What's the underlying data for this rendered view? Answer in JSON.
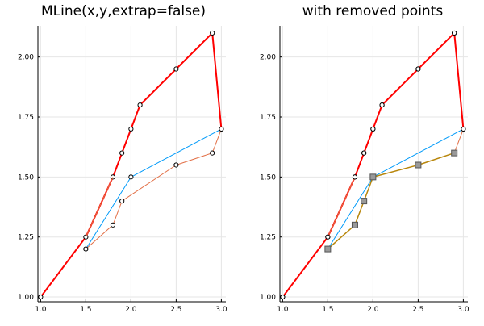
{
  "chart_data": [
    {
      "type": "line",
      "title": "MLine(x,y,extrap=false)",
      "xlabel": "",
      "ylabel": "",
      "xlim": [
        0.97,
        3.05
      ],
      "ylim": [
        0.98,
        2.13
      ],
      "xticks": [
        1.0,
        1.5,
        2.0,
        2.5,
        3.0
      ],
      "xtick_labels": [
        "1.0",
        "1.5",
        "2.0",
        "2.5",
        "3.0"
      ],
      "yticks": [
        1.0,
        1.25,
        1.5,
        1.75,
        2.0
      ],
      "ytick_labels": [
        "1.00",
        "1.25",
        "1.50",
        "1.75",
        "2.00"
      ],
      "grid": true,
      "legend": "none",
      "series": [
        {
          "color": "#ff0000",
          "line_width": 2,
          "markers": true,
          "x": [
            1.0,
            1.5,
            1.8,
            1.9,
            2.0,
            2.1,
            2.5,
            2.9,
            3.0
          ],
          "y": [
            1.0,
            1.25,
            1.5,
            1.6,
            1.7,
            1.8,
            1.95,
            2.1,
            1.7
          ]
        },
        {
          "color": "#009af9",
          "line_width": 1,
          "markers": false,
          "x": [
            1.5,
            2.0,
            3.0
          ],
          "y": [
            1.2,
            1.5,
            1.7
          ]
        },
        {
          "color": "#e26f46",
          "line_width": 1,
          "markers": true,
          "x": [
            1.5,
            1.8,
            1.9,
            2.5,
            2.9,
            3.0
          ],
          "y": [
            1.2,
            1.3,
            1.4,
            1.55,
            1.6,
            1.7
          ]
        },
        {
          "color": "#e26f46",
          "line_width": 1,
          "markers": false,
          "x": [
            1.5,
            1.8
          ],
          "y": [
            1.25,
            1.5
          ]
        },
        {
          "color": "#009af9",
          "line_width": 1,
          "markers": true,
          "x": [
            2.0
          ],
          "y": [
            1.5
          ]
        }
      ]
    },
    {
      "type": "line",
      "title": "with removed points",
      "xlabel": "",
      "ylabel": "",
      "xlim": [
        0.97,
        3.05
      ],
      "ylim": [
        0.98,
        2.13
      ],
      "xticks": [
        1.0,
        1.5,
        2.0,
        2.5,
        3.0
      ],
      "xtick_labels": [
        "1.0",
        "1.5",
        "2.0",
        "2.5",
        "3.0"
      ],
      "yticks": [
        1.0,
        1.25,
        1.5,
        1.75,
        2.0
      ],
      "ytick_labels": [
        "1.00",
        "1.25",
        "1.50",
        "1.75",
        "2.00"
      ],
      "grid": true,
      "legend": "none",
      "series": [
        {
          "color": "#ff0000",
          "line_width": 2,
          "markers": true,
          "x": [
            1.0,
            1.5,
            1.8,
            1.9,
            2.0,
            2.1,
            2.5,
            2.9,
            3.0
          ],
          "y": [
            1.0,
            1.25,
            1.5,
            1.6,
            1.7,
            1.8,
            1.95,
            2.1,
            1.7
          ]
        },
        {
          "color": "#009af9",
          "line_width": 1,
          "markers": false,
          "x": [
            1.5,
            2.0,
            3.0
          ],
          "y": [
            1.2,
            1.5,
            1.7
          ]
        },
        {
          "color": "#e26f46",
          "line_width": 1,
          "markers": false,
          "x": [
            1.5,
            1.8
          ],
          "y": [
            1.25,
            1.5
          ]
        },
        {
          "color": "#e26f46",
          "line_width": 1,
          "markers": false,
          "x": [
            2.9,
            3.0
          ],
          "y": [
            1.6,
            1.7
          ]
        },
        {
          "color": "#b8860b",
          "line_width": 1.5,
          "markers": false,
          "x": [
            1.5,
            1.8,
            1.9,
            2.0,
            2.5,
            2.9
          ],
          "y": [
            1.2,
            1.3,
            1.4,
            1.5,
            1.55,
            1.6
          ]
        },
        {
          "color": "#999999",
          "line_width": 0,
          "markers": true,
          "marker_shape": "square",
          "x": [
            1.5,
            1.8,
            1.9,
            2.0,
            2.5,
            2.9
          ],
          "y": [
            1.2,
            1.3,
            1.4,
            1.5,
            1.55,
            1.6
          ]
        },
        {
          "color": "#ffffff",
          "line_width": 0,
          "markers": true,
          "x": [
            1.0,
            1.5,
            1.8,
            1.9,
            2.0,
            2.1,
            2.5,
            2.9,
            3.0
          ],
          "y": [
            1.0,
            1.25,
            1.5,
            1.6,
            1.7,
            1.8,
            1.95,
            2.1,
            1.7
          ]
        }
      ]
    }
  ]
}
